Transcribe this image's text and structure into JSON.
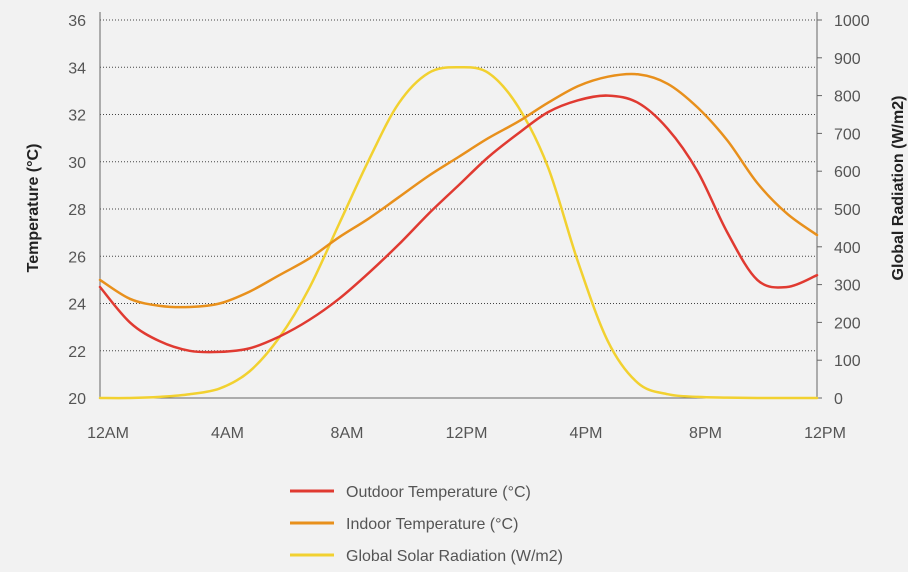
{
  "chart_data": {
    "type": "line",
    "title": "",
    "xlabel": "",
    "ylabel_left": "Temperature (°C)",
    "ylabel_right": "Global Radiation (W/m2)",
    "x_tick_labels": [
      "12AM",
      "4AM",
      "8AM",
      "12PM",
      "4PM",
      "8PM",
      "12PM"
    ],
    "x_range_hours": [
      0,
      24
    ],
    "y_left_range": [
      20,
      36
    ],
    "y_left_ticks": [
      "20",
      "22",
      "24",
      "26",
      "28",
      "30",
      "32",
      "34",
      "36"
    ],
    "y_right_range": [
      0,
      1000
    ],
    "y_right_ticks": [
      "0",
      "100",
      "200",
      "300",
      "400",
      "500",
      "600",
      "700",
      "800",
      "900",
      "1000"
    ],
    "grid": "horizontal-dotted",
    "legend_position": "bottom",
    "series": [
      {
        "name": "Outdoor Temperature (°C)",
        "axis": "left",
        "color": "#e03a31",
        "x": [
          0,
          1,
          2,
          3,
          4,
          5,
          6,
          7,
          8,
          9,
          10,
          11,
          12,
          13,
          14,
          15,
          16,
          17,
          18,
          19,
          20,
          21,
          22,
          23,
          24
        ],
        "y": [
          24.7,
          23.2,
          22.4,
          22.0,
          21.95,
          22.1,
          22.6,
          23.3,
          24.2,
          25.3,
          26.5,
          27.8,
          29.0,
          30.2,
          31.2,
          32.1,
          32.6,
          32.8,
          32.5,
          31.4,
          29.6,
          27.0,
          25.0,
          24.7,
          25.2
        ]
      },
      {
        "name": "Indoor Temperature (°C)",
        "axis": "left",
        "color": "#e8901c",
        "x": [
          0,
          1,
          2,
          3,
          4,
          5,
          6,
          7,
          8,
          9,
          10,
          11,
          12,
          13,
          14,
          15,
          16,
          17,
          18,
          19,
          20,
          21,
          22,
          23,
          24
        ],
        "y": [
          25.0,
          24.2,
          23.9,
          23.85,
          24.0,
          24.5,
          25.2,
          25.9,
          26.8,
          27.6,
          28.5,
          29.4,
          30.2,
          31.0,
          31.7,
          32.5,
          33.2,
          33.6,
          33.7,
          33.3,
          32.3,
          30.9,
          29.1,
          27.8,
          26.9
        ]
      },
      {
        "name": "Global Solar Radiation (W/m2)",
        "axis": "right",
        "color": "#f2d130",
        "x": [
          0,
          1,
          2,
          3,
          4,
          5,
          6,
          7,
          8,
          9,
          10,
          11,
          12,
          13,
          14,
          15,
          16,
          17,
          18,
          19,
          20,
          21,
          22,
          23,
          24
        ],
        "y": [
          0,
          0,
          3,
          10,
          25,
          70,
          160,
          290,
          460,
          630,
          780,
          860,
          875,
          860,
          770,
          610,
          360,
          150,
          40,
          10,
          3,
          1,
          0,
          0,
          0
        ]
      }
    ]
  }
}
